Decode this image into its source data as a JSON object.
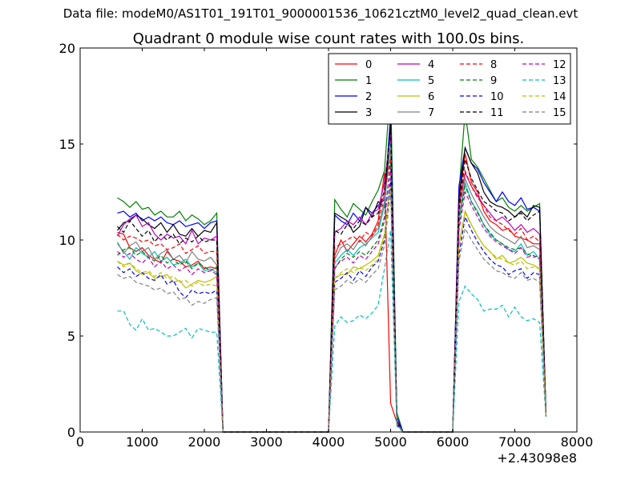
{
  "suptitle": "Data file: modeM0/AS1T01_191T01_9000001536_10621cztM0_level2_quad_clean.evt",
  "chart_data": {
    "type": "line",
    "title": "Quadrant 0 module wise count rates with 100.0s bins.",
    "xlabel": "",
    "ylabel": "",
    "x_offset_label": "+2.43098e8",
    "xlim": [
      0,
      8000
    ],
    "ylim": [
      0,
      20
    ],
    "x_ticks": [
      0,
      1000,
      2000,
      3000,
      4000,
      5000,
      6000,
      7000,
      8000
    ],
    "y_ticks": [
      0,
      5,
      10,
      15,
      20
    ],
    "grid": false,
    "legend_placement": "top-right",
    "legend_columns": 4,
    "x": [
      600,
      700,
      800,
      900,
      1000,
      1100,
      1200,
      1300,
      1400,
      1500,
      1600,
      1700,
      1800,
      1900,
      2000,
      2100,
      2200,
      2300,
      2400,
      2500,
      2600,
      2700,
      2800,
      2900,
      3000,
      3100,
      3200,
      3300,
      3400,
      3500,
      3600,
      3700,
      3800,
      3900,
      4000,
      4100,
      4200,
      4300,
      4400,
      4500,
      4600,
      4700,
      4800,
      4900,
      5000,
      5100,
      5200,
      5300,
      5400,
      5500,
      5600,
      5700,
      5800,
      5900,
      6000,
      6100,
      6200,
      6300,
      6400,
      6500,
      6600,
      6700,
      6800,
      6900,
      7000,
      7100,
      7200,
      7300,
      7400,
      7500
    ],
    "segments": {
      "seg1": [
        600,
        2200
      ],
      "seg2": [
        4100,
        5100
      ],
      "seg3": [
        6100,
        7500
      ]
    },
    "series": [
      {
        "name": "0",
        "color": "#ff0000",
        "dash": "solid",
        "seg1": [
          10.4,
          10.3,
          9.6,
          9.4,
          9.6,
          9.2,
          9.0,
          8.8,
          9.4,
          9.0,
          8.9,
          8.6,
          8.7,
          8.9,
          8.5,
          8.6,
          8.5
        ],
        "seg2": [
          9.2,
          10.0,
          9.4,
          9.8,
          10.2,
          9.9,
          10.3,
          11.0,
          13.5,
          1.5,
          0.5
        ],
        "seg3": [
          12.0,
          14.5,
          13.0,
          12.5,
          11.5,
          11.0,
          10.8,
          10.5,
          10.6,
          10.2,
          10.1,
          10.0,
          9.8,
          9.8,
          1.3
        ]
      },
      {
        "name": "1",
        "color": "#008000",
        "dash": "solid",
        "seg1": [
          12.2,
          12.0,
          11.7,
          12.0,
          11.6,
          11.7,
          11.3,
          11.5,
          11.2,
          11.2,
          11.5,
          11.0,
          11.3,
          11.1,
          10.8,
          11.0,
          11.4
        ],
        "seg2": [
          12.1,
          11.6,
          11.2,
          11.9,
          11.6,
          11.3,
          12.0,
          12.6,
          13.6,
          18.0,
          1.0
        ],
        "seg3": [
          12.5,
          16.7,
          14.2,
          13.8,
          13.2,
          12.6,
          12.0,
          12.2,
          11.7,
          11.5,
          11.8,
          11.5,
          11.7,
          11.9,
          0.8
        ]
      },
      {
        "name": "2",
        "color": "#0000ff",
        "dash": "solid",
        "seg1": [
          11.4,
          11.5,
          11.2,
          11.4,
          11.0,
          11.2,
          11.0,
          11.2,
          10.9,
          10.8,
          11.0,
          10.7,
          10.8,
          10.9,
          10.6,
          10.9,
          11.0
        ],
        "seg2": [
          11.3,
          11.0,
          10.8,
          11.4,
          11.0,
          11.7,
          11.4,
          11.8,
          12.1,
          16.5,
          0.8
        ],
        "seg3": [
          12.8,
          14.8,
          14.0,
          13.7,
          13.0,
          12.5,
          12.0,
          12.5,
          12.0,
          11.8,
          12.2,
          11.6,
          11.7,
          11.5,
          1.2
        ]
      },
      {
        "name": "3",
        "color": "#000000",
        "dash": "solid",
        "seg1": [
          10.5,
          10.9,
          11.0,
          11.3,
          11.1,
          10.8,
          10.6,
          10.9,
          10.4,
          10.8,
          10.3,
          10.2,
          10.6,
          10.2,
          10.5,
          10.4,
          10.9
        ],
        "seg2": [
          11.4,
          11.2,
          11.0,
          10.4,
          10.7,
          11.7,
          11.2,
          12.0,
          11.7,
          16.0,
          0.6
        ],
        "seg3": [
          12.2,
          14.8,
          14.0,
          13.5,
          12.5,
          12.0,
          11.8,
          11.7,
          11.5,
          11.2,
          11.5,
          11.2,
          11.8,
          11.7,
          1.0
        ]
      },
      {
        "name": "4",
        "color": "#bf00bf",
        "dash": "solid",
        "seg1": [
          10.2,
          10.8,
          11.1,
          11.3,
          10.7,
          10.9,
          10.3,
          10.0,
          10.3,
          10.1,
          10.2,
          9.8,
          10.5,
          9.8,
          10.1,
          10.0,
          10.2
        ],
        "seg2": [
          10.4,
          10.6,
          11.0,
          10.8,
          11.2,
          10.8,
          11.4,
          11.6,
          13.0,
          15.5,
          0.5
        ],
        "seg3": [
          11.8,
          13.5,
          12.8,
          12.3,
          11.8,
          11.4,
          11.0,
          11.2,
          10.9,
          10.5,
          10.8,
          10.4,
          10.6,
          10.3,
          1.0
        ]
      },
      {
        "name": "5",
        "color": "#00bfbf",
        "dash": "solid",
        "seg1": [
          9.8,
          9.4,
          9.0,
          9.6,
          9.3,
          9.1,
          9.4,
          8.9,
          9.1,
          8.7,
          8.8,
          9.0,
          8.6,
          8.8,
          8.4,
          8.5,
          8.3
        ],
        "seg2": [
          8.8,
          9.2,
          9.5,
          9.2,
          9.6,
          9.8,
          10.1,
          10.4,
          11.8,
          15.0,
          0.5
        ],
        "seg3": [
          11.0,
          13.0,
          12.0,
          11.5,
          10.8,
          10.3,
          10.0,
          9.8,
          9.5,
          9.4,
          9.8,
          9.2,
          9.4,
          9.0,
          1.0
        ]
      },
      {
        "name": "6",
        "color": "#bfbf00",
        "dash": "solid",
        "seg1": [
          8.9,
          8.7,
          8.8,
          8.4,
          8.2,
          8.3,
          8.0,
          8.1,
          8.2,
          7.8,
          7.9,
          7.5,
          7.7,
          7.9,
          7.8,
          7.9,
          8.1
        ],
        "seg2": [
          8.0,
          8.2,
          8.2,
          8.6,
          8.5,
          8.7,
          8.9,
          9.2,
          10.3,
          13.0,
          0.4
        ],
        "seg3": [
          9.8,
          11.5,
          10.8,
          10.2,
          9.7,
          9.4,
          9.0,
          9.2,
          8.8,
          8.9,
          9.1,
          8.8,
          8.7,
          8.5,
          0.9
        ]
      },
      {
        "name": "7",
        "color": "#808080",
        "dash": "solid",
        "seg1": [
          9.9,
          9.3,
          9.7,
          9.9,
          9.4,
          9.6,
          9.0,
          9.3,
          9.5,
          9.0,
          9.2,
          8.8,
          9.4,
          9.0,
          8.9,
          9.1,
          8.7
        ],
        "seg2": [
          9.0,
          9.6,
          9.8,
          9.5,
          10.0,
          9.7,
          10.2,
          10.6,
          12.0,
          14.8,
          0.5
        ],
        "seg3": [
          11.2,
          13.2,
          12.4,
          11.8,
          11.2,
          10.7,
          10.4,
          10.2,
          10.0,
          9.8,
          10.2,
          9.6,
          9.7,
          9.5,
          1.0
        ]
      },
      {
        "name": "8",
        "color": "#ff0000",
        "dash": "dashed",
        "seg1": [
          10.3,
          10.0,
          10.2,
          10.1,
          9.9,
          10.0,
          9.7,
          9.8,
          9.5,
          9.6,
          9.8,
          9.3,
          9.5,
          9.7,
          9.3,
          9.4,
          9.4
        ],
        "seg2": [
          9.6,
          9.8,
          10.0,
          10.2,
          9.9,
          10.4,
          10.2,
          10.8,
          12.5,
          14.2,
          0.5
        ],
        "seg3": [
          11.5,
          13.6,
          12.8,
          12.2,
          11.8,
          11.2,
          11.0,
          10.8,
          10.5,
          10.3,
          10.6,
          10.0,
          10.2,
          9.9,
          1.0
        ]
      },
      {
        "name": "9",
        "color": "#008000",
        "dash": "dashed",
        "seg1": [
          9.2,
          9.5,
          9.6,
          9.2,
          9.4,
          9.1,
          8.9,
          9.2,
          8.8,
          9.0,
          8.7,
          8.9,
          8.5,
          8.8,
          8.6,
          8.4,
          8.6
        ],
        "seg2": [
          8.5,
          9.0,
          9.3,
          9.1,
          9.4,
          9.2,
          9.6,
          10.0,
          11.2,
          14.0,
          0.5
        ],
        "seg3": [
          10.8,
          12.8,
          12.0,
          11.4,
          10.8,
          10.4,
          10.0,
          9.8,
          9.6,
          9.5,
          9.6,
          9.3,
          9.1,
          9.2,
          1.0
        ]
      },
      {
        "name": "10",
        "color": "#0000ff",
        "dash": "dashed",
        "seg1": [
          8.6,
          8.3,
          8.5,
          8.1,
          8.3,
          8.0,
          7.9,
          8.2,
          7.7,
          7.9,
          7.3,
          7.0,
          7.4,
          7.2,
          7.3,
          7.2,
          7.4
        ],
        "seg2": [
          7.8,
          8.0,
          8.3,
          7.9,
          8.4,
          8.1,
          8.6,
          8.9,
          10.0,
          13.2,
          0.4
        ],
        "seg3": [
          9.2,
          11.2,
          10.5,
          9.9,
          9.4,
          9.0,
          8.7,
          8.6,
          8.2,
          8.4,
          8.5,
          8.0,
          8.3,
          8.2,
          0.9
        ]
      },
      {
        "name": "11",
        "color": "#000000",
        "dash": "dashed",
        "seg1": [
          10.7,
          10.4,
          11.0,
          10.6,
          10.2,
          10.5,
          9.9,
          10.3,
          10.0,
          10.3,
          9.8,
          10.1,
          9.9,
          10.2,
          9.9,
          10.0,
          10.0
        ],
        "seg2": [
          10.5,
          10.3,
          10.8,
          10.6,
          11.0,
          10.8,
          11.2,
          11.4,
          12.6,
          15.8,
          0.5
        ],
        "seg3": [
          11.6,
          14.2,
          13.2,
          12.6,
          12.0,
          11.8,
          11.5,
          11.4,
          11.0,
          11.2,
          11.4,
          11.0,
          11.3,
          11.5,
          1.0
        ]
      },
      {
        "name": "12",
        "color": "#bf00bf",
        "dash": "dashed",
        "seg1": [
          9.4,
          9.1,
          9.3,
          9.0,
          8.8,
          9.1,
          8.6,
          8.9,
          8.5,
          8.7,
          8.4,
          8.6,
          8.2,
          8.5,
          8.3,
          8.4,
          8.2
        ],
        "seg2": [
          8.6,
          8.9,
          9.1,
          8.8,
          9.2,
          9.0,
          9.4,
          9.8,
          11.0,
          13.8,
          0.5
        ],
        "seg3": [
          10.5,
          12.5,
          11.8,
          11.2,
          10.6,
          10.2,
          9.9,
          9.7,
          9.5,
          9.3,
          9.6,
          9.1,
          9.2,
          9.0,
          1.0
        ]
      },
      {
        "name": "13",
        "color": "#00bfbf",
        "dash": "dashed",
        "seg1": [
          6.3,
          6.3,
          5.6,
          5.3,
          5.9,
          5.3,
          5.4,
          5.2,
          5.0,
          5.0,
          5.2,
          5.4,
          4.9,
          5.4,
          5.3,
          5.2,
          5.2
        ],
        "seg2": [
          5.5,
          6.0,
          5.7,
          5.8,
          6.1,
          5.9,
          6.2,
          6.6,
          8.5,
          10.5,
          0.3
        ],
        "seg3": [
          6.8,
          7.6,
          7.2,
          6.9,
          6.3,
          6.4,
          6.4,
          6.6,
          6.0,
          6.5,
          6.0,
          5.8,
          5.9,
          5.7,
          0.8
        ]
      },
      {
        "name": "14",
        "color": "#bfbf00",
        "dash": "dashed",
        "seg1": [
          8.9,
          8.6,
          8.8,
          8.5,
          8.3,
          8.4,
          8.1,
          8.3,
          8.0,
          8.1,
          7.8,
          7.9,
          7.6,
          7.8,
          7.6,
          7.7,
          7.6
        ],
        "seg2": [
          8.0,
          8.3,
          8.5,
          8.3,
          8.6,
          8.4,
          8.7,
          9.0,
          10.2,
          12.8,
          0.4
        ],
        "seg3": [
          9.6,
          11.4,
          10.8,
          10.2,
          9.7,
          9.4,
          9.1,
          9.0,
          8.8,
          8.7,
          8.9,
          8.5,
          8.6,
          8.5,
          0.9
        ]
      },
      {
        "name": "15",
        "color": "#808080",
        "dash": "dashed",
        "seg1": [
          8.2,
          8.0,
          8.1,
          7.8,
          7.7,
          7.6,
          7.4,
          7.5,
          7.2,
          7.3,
          6.9,
          7.0,
          6.6,
          6.8,
          6.7,
          6.9,
          7.0
        ],
        "seg2": [
          7.4,
          7.6,
          7.9,
          7.7,
          8.0,
          7.8,
          8.2,
          8.5,
          9.7,
          12.5,
          0.4
        ],
        "seg3": [
          8.9,
          10.6,
          10.0,
          9.5,
          9.0,
          8.7,
          8.4,
          8.3,
          8.1,
          8.0,
          8.3,
          7.9,
          8.0,
          7.8,
          0.9
        ]
      }
    ]
  }
}
